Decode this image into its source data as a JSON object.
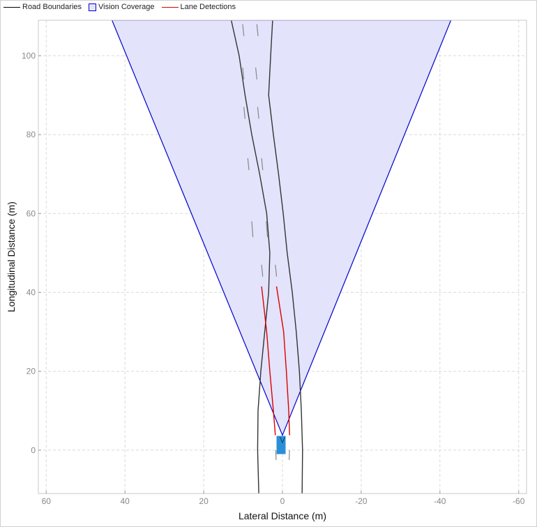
{
  "chart_data": {
    "type": "line",
    "title": "",
    "xlabel": "Lateral Distance (m)",
    "ylabel": "Longitudinal Distance (m)",
    "xlim": [
      62,
      -62
    ],
    "ylim": [
      -11,
      109
    ],
    "x_reversed": true,
    "grid": true,
    "legend_position": "top-left",
    "xticks": [
      60,
      40,
      20,
      0,
      -20,
      -40,
      -60
    ],
    "xtick_labels": [
      "60",
      "40",
      "20",
      "0",
      "-20",
      "-40",
      "-60"
    ],
    "yticks": [
      0,
      20,
      40,
      60,
      80,
      100
    ],
    "ytick_labels": [
      "0",
      "20",
      "40",
      "60",
      "80",
      "100"
    ],
    "legend": [
      {
        "label": "Road Boundaries",
        "kind": "line",
        "color": "#000000"
      },
      {
        "label": "Vision Coverage",
        "kind": "patch",
        "color": "#0000cc"
      },
      {
        "label": "Lane Detections",
        "kind": "line",
        "color": "#dd0000"
      }
    ],
    "series": [
      {
        "name": "Road Boundaries",
        "color": "#000000",
        "lines": [
          [
            [
              6,
              -11
            ],
            [
              6.3,
              0
            ],
            [
              6.2,
              10
            ],
            [
              5.5,
              20
            ],
            [
              4.5,
              30
            ],
            [
              3.5,
              40
            ],
            [
              3.2,
              50
            ],
            [
              4,
              60
            ],
            [
              5.8,
              70
            ],
            [
              7.8,
              80
            ],
            [
              9.5,
              90
            ],
            [
              11,
              100
            ],
            [
              13,
              109
            ]
          ],
          [
            [
              -5,
              -11
            ],
            [
              -5.1,
              0
            ],
            [
              -4.8,
              10
            ],
            [
              -4.3,
              20
            ],
            [
              -3.5,
              30
            ],
            [
              -2.5,
              40
            ],
            [
              -1.2,
              50
            ],
            [
              -0.2,
              60
            ],
            [
              1,
              70
            ],
            [
              2.3,
              80
            ],
            [
              3.5,
              90
            ],
            [
              3,
              100
            ],
            [
              2.5,
              109
            ]
          ]
        ]
      },
      {
        "name": "Vision Coverage",
        "color": "#0000cc",
        "fill": "#e3e3fb",
        "polygon": [
          [
            0,
            3.8
          ],
          [
            43.3,
            109
          ],
          [
            -42.8,
            109
          ]
        ]
      },
      {
        "name": "Lane Detections",
        "color": "#dd0000",
        "lines": [
          [
            [
              1.8,
              3.8
            ],
            [
              2.3,
              10
            ],
            [
              3.2,
              20
            ],
            [
              4,
              30
            ],
            [
              5.3,
              41.5
            ]
          ],
          [
            [
              -1.8,
              3.8
            ],
            [
              -1.6,
              10
            ],
            [
              -1,
              20
            ],
            [
              -0.3,
              30
            ],
            [
              1.5,
              41.5
            ]
          ]
        ]
      },
      {
        "name": "lane-markings",
        "color": "#888888",
        "segments": [
          [
            [
              1.6,
              -2.5
            ],
            [
              1.7,
              0
            ]
          ],
          [
            [
              -1.7,
              -2.5
            ],
            [
              -1.8,
              0
            ]
          ],
          [
            [
              5.0,
              44
            ],
            [
              5.3,
              47
            ]
          ],
          [
            [
              1.5,
              44
            ],
            [
              1.8,
              47
            ]
          ],
          [
            [
              7.5,
              54
            ],
            [
              7.8,
              58
            ]
          ],
          [
            [
              3.8,
              54
            ],
            [
              4.1,
              58
            ]
          ],
          [
            [
              8.5,
              71
            ],
            [
              8.8,
              74
            ]
          ],
          [
            [
              5.0,
              71
            ],
            [
              5.3,
              74
            ]
          ],
          [
            [
              9.5,
              84
            ],
            [
              9.8,
              87
            ]
          ],
          [
            [
              6.0,
              84
            ],
            [
              6.3,
              87
            ]
          ],
          [
            [
              9.8,
              94
            ],
            [
              10.1,
              97
            ]
          ],
          [
            [
              6.5,
              94
            ],
            [
              6.8,
              97
            ]
          ],
          [
            [
              9.8,
              105
            ],
            [
              10.1,
              108
            ]
          ],
          [
            [
              6.2,
              105
            ],
            [
              6.5,
              108
            ]
          ]
        ]
      },
      {
        "name": "ego-vehicle",
        "color": "#2a8fd6",
        "rect": {
          "x": [
            -0.8,
            1.5
          ],
          "y": [
            -1,
            3.6
          ]
        },
        "arrow": [
          [
            0.6,
            3.3
          ],
          [
            0,
            1.9
          ],
          [
            -0.6,
            3.3
          ]
        ]
      }
    ]
  }
}
